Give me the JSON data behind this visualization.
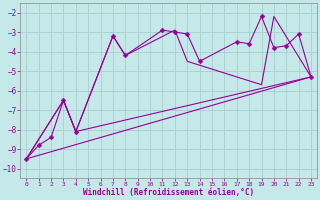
{
  "background_color": "#c5e8e8",
  "grid_color": "#a8d0d0",
  "line_color": "#990099",
  "xlabel": "Windchill (Refroidissement éolien,°C)",
  "xlim": [
    -0.5,
    23.5
  ],
  "ylim": [
    -10.5,
    -1.5
  ],
  "yticks": [
    -10,
    -9,
    -8,
    -7,
    -6,
    -5,
    -4,
    -3,
    -2
  ],
  "xticks": [
    0,
    1,
    2,
    3,
    4,
    5,
    6,
    7,
    8,
    9,
    10,
    11,
    12,
    13,
    14,
    15,
    16,
    17,
    18,
    19,
    20,
    21,
    22,
    23
  ],
  "line1_x": [
    0,
    1,
    2,
    3,
    4,
    7,
    8,
    11,
    12,
    13,
    14,
    17,
    18,
    19,
    20,
    21,
    22,
    23
  ],
  "line1_y": [
    -9.5,
    -8.8,
    -8.4,
    -6.5,
    -8.1,
    -3.2,
    -4.2,
    -2.9,
    -3.0,
    -3.1,
    -4.5,
    -3.5,
    -3.6,
    -2.2,
    -3.8,
    -3.7,
    -3.1,
    -5.3
  ],
  "line2_x": [
    0,
    3,
    4,
    7,
    8,
    12,
    13,
    19,
    20,
    23
  ],
  "line2_y": [
    -9.5,
    -6.5,
    -8.1,
    -3.2,
    -4.2,
    -2.9,
    -4.5,
    -5.7,
    -2.2,
    -5.3
  ],
  "line3_x": [
    0,
    23
  ],
  "line3_y": [
    -9.5,
    -5.3
  ],
  "line4_x": [
    0,
    3,
    4,
    23
  ],
  "line4_y": [
    -9.5,
    -6.5,
    -8.1,
    -5.3
  ]
}
